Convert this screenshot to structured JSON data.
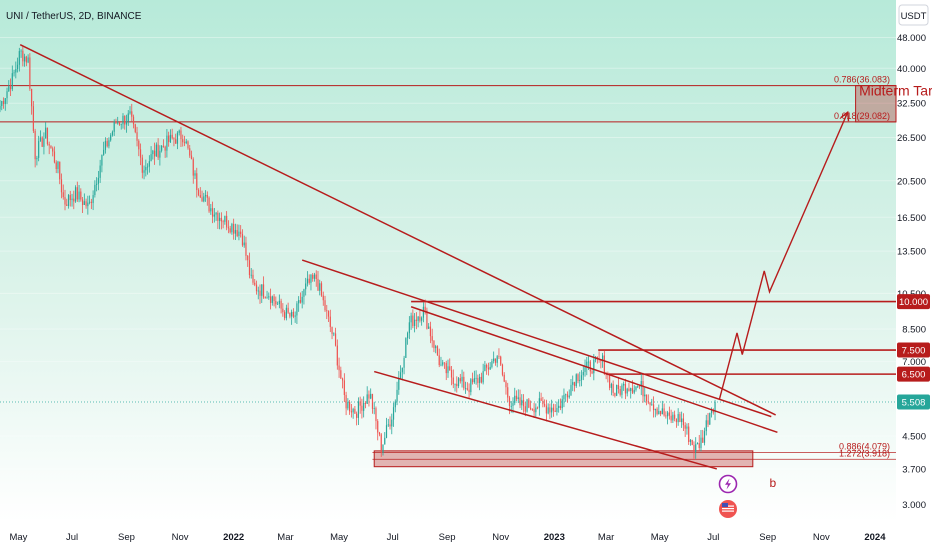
{
  "title": "UNI / TetherUS, 2D, BINANCE",
  "currency": "USDT",
  "colors": {
    "background_top": "#b7ead9",
    "background_bottom": "#ffffff",
    "up": "#26a69a",
    "down": "#ef5350",
    "annotation": "#b71c1c",
    "last_price": "#26a69a"
  },
  "icons": [
    "lightning-icon",
    "us-flag-icon"
  ],
  "chart_data": {
    "type": "candlestick",
    "title": "UNI / TetherUS, 2D, BINANCE",
    "y_scale": "log",
    "ylim": [
      2.7,
      60
    ],
    "x_range": [
      "2021-04-10",
      "2024-01-25"
    ],
    "y_ticks": [
      "3.000",
      "3.700",
      "4.500",
      "5.500",
      "7.000",
      "8.500",
      "10.500",
      "13.500",
      "16.500",
      "20.500",
      "26.500",
      "32.500",
      "40.000",
      "48.000"
    ],
    "x_ticks": [
      {
        "label": "May",
        "date": "2021-05-01"
      },
      {
        "label": "Jul",
        "date": "2021-07-01"
      },
      {
        "label": "Sep",
        "date": "2021-09-01"
      },
      {
        "label": "Nov",
        "date": "2021-11-01"
      },
      {
        "label": "2022",
        "date": "2022-01-01",
        "bold": true
      },
      {
        "label": "Mar",
        "date": "2022-03-01"
      },
      {
        "label": "May",
        "date": "2022-05-01"
      },
      {
        "label": "Jul",
        "date": "2022-07-01"
      },
      {
        "label": "Sep",
        "date": "2022-09-01"
      },
      {
        "label": "Nov",
        "date": "2022-11-01"
      },
      {
        "label": "2023",
        "date": "2023-01-01",
        "bold": true
      },
      {
        "label": "Mar",
        "date": "2023-03-01"
      },
      {
        "label": "May",
        "date": "2023-05-01"
      },
      {
        "label": "Jul",
        "date": "2023-07-01"
      },
      {
        "label": "Sep",
        "date": "2023-09-01"
      },
      {
        "label": "Nov",
        "date": "2023-11-01"
      },
      {
        "label": "2024",
        "date": "2024-01-01",
        "bold": true
      }
    ],
    "price_path": [
      [
        "2021-04-10",
        32
      ],
      [
        "2021-04-25",
        38
      ],
      [
        "2021-05-03",
        44
      ],
      [
        "2021-05-12",
        42
      ],
      [
        "2021-05-20",
        24
      ],
      [
        "2021-06-01",
        27
      ],
      [
        "2021-06-15",
        22
      ],
      [
        "2021-06-22",
        18
      ],
      [
        "2021-07-05",
        19
      ],
      [
        "2021-07-20",
        17.5
      ],
      [
        "2021-08-05",
        24
      ],
      [
        "2021-08-20",
        29
      ],
      [
        "2021-09-05",
        30
      ],
      [
        "2021-09-20",
        22
      ],
      [
        "2021-10-01",
        24
      ],
      [
        "2021-10-20",
        26
      ],
      [
        "2021-11-05",
        27
      ],
      [
        "2021-11-20",
        20
      ],
      [
        "2021-12-05",
        17.5
      ],
      [
        "2021-12-25",
        16
      ],
      [
        "2022-01-10",
        15
      ],
      [
        "2022-01-22",
        11
      ],
      [
        "2022-02-10",
        10.5
      ],
      [
        "2022-02-25",
        9.5
      ],
      [
        "2022-03-10",
        9
      ],
      [
        "2022-03-25",
        11
      ],
      [
        "2022-04-05",
        11.5
      ],
      [
        "2022-04-25",
        8
      ],
      [
        "2022-05-08",
        5.5
      ],
      [
        "2022-05-20",
        5.2
      ],
      [
        "2022-06-05",
        5.8
      ],
      [
        "2022-06-18",
        4.2
      ],
      [
        "2022-07-01",
        5.2
      ],
      [
        "2022-07-20",
        8.8
      ],
      [
        "2022-08-05",
        9.5
      ],
      [
        "2022-08-25",
        6.8
      ],
      [
        "2022-09-10",
        6.3
      ],
      [
        "2022-09-25",
        6.0
      ],
      [
        "2022-10-10",
        6.4
      ],
      [
        "2022-10-28",
        7.3
      ],
      [
        "2022-11-10",
        5.6
      ],
      [
        "2022-11-25",
        5.4
      ],
      [
        "2022-12-15",
        5.4
      ],
      [
        "2023-01-05",
        5.3
      ],
      [
        "2023-01-25",
        6.4
      ],
      [
        "2023-02-10",
        6.8
      ],
      [
        "2023-02-25",
        7.0
      ],
      [
        "2023-03-10",
        5.8
      ],
      [
        "2023-03-25",
        6.1
      ],
      [
        "2023-04-10",
        6.0
      ],
      [
        "2023-04-25",
        5.4
      ],
      [
        "2023-05-10",
        5.0
      ],
      [
        "2023-05-25",
        5.0
      ],
      [
        "2023-06-10",
        4.15
      ],
      [
        "2023-06-18",
        4.4
      ],
      [
        "2023-06-28",
        5.3
      ],
      [
        "2023-07-03",
        5.508
      ]
    ],
    "last_price": "5.508",
    "horizontal_levels": [
      {
        "label": "10.000",
        "price": 10.0,
        "from": "2022-07-22"
      },
      {
        "label": "7.500",
        "price": 7.5,
        "from": "2023-02-20"
      },
      {
        "label": "6.500",
        "price": 6.5,
        "from": "2023-03-01"
      }
    ],
    "fib_levels": [
      {
        "label": "0.786(36.083)",
        "price": 36.083
      },
      {
        "label": "0.618(29.082)",
        "price": 29.082
      },
      {
        "label": "0.886(4.079)",
        "price": 4.079
      },
      {
        "label": "1.272(3.918)",
        "price": 3.918
      }
    ],
    "zones": [
      {
        "name": "target-zone",
        "from": "2023-12-10",
        "to": "2024-01-25",
        "low": 29.082,
        "high": 36.083
      },
      {
        "name": "support-zone",
        "from": "2022-06-10",
        "to": "2023-08-15",
        "low": 3.75,
        "high": 4.12
      }
    ],
    "trendlines": [
      {
        "name": "major-downtrend",
        "points": [
          [
            "2021-05-03",
            46
          ],
          [
            "2023-09-10",
            5.1
          ]
        ]
      },
      {
        "name": "channel-top",
        "points": [
          [
            "2022-03-20",
            12.8
          ],
          [
            "2023-09-05",
            5.05
          ]
        ]
      },
      {
        "name": "channel-bottom",
        "points": [
          [
            "2022-06-10",
            6.6
          ],
          [
            "2023-07-05",
            3.7
          ]
        ]
      },
      {
        "name": "wedge-top",
        "points": [
          [
            "2022-07-22",
            9.7
          ],
          [
            "2023-09-12",
            4.6
          ]
        ]
      }
    ],
    "projection": [
      [
        "2023-07-08",
        5.6
      ],
      [
        "2023-07-28",
        8.3
      ],
      [
        "2023-08-03",
        7.3
      ],
      [
        "2023-08-28",
        12.0
      ],
      [
        "2023-09-03",
        10.6
      ],
      [
        "2023-12-01",
        30.8
      ]
    ],
    "annotations": [
      {
        "name": "midterm-target",
        "text": "Midterm Target",
        "date": "2023-12-14",
        "price": 34
      },
      {
        "name": "wave-b",
        "text": "b",
        "date": "2023-09-03",
        "price": 3.32
      }
    ]
  }
}
